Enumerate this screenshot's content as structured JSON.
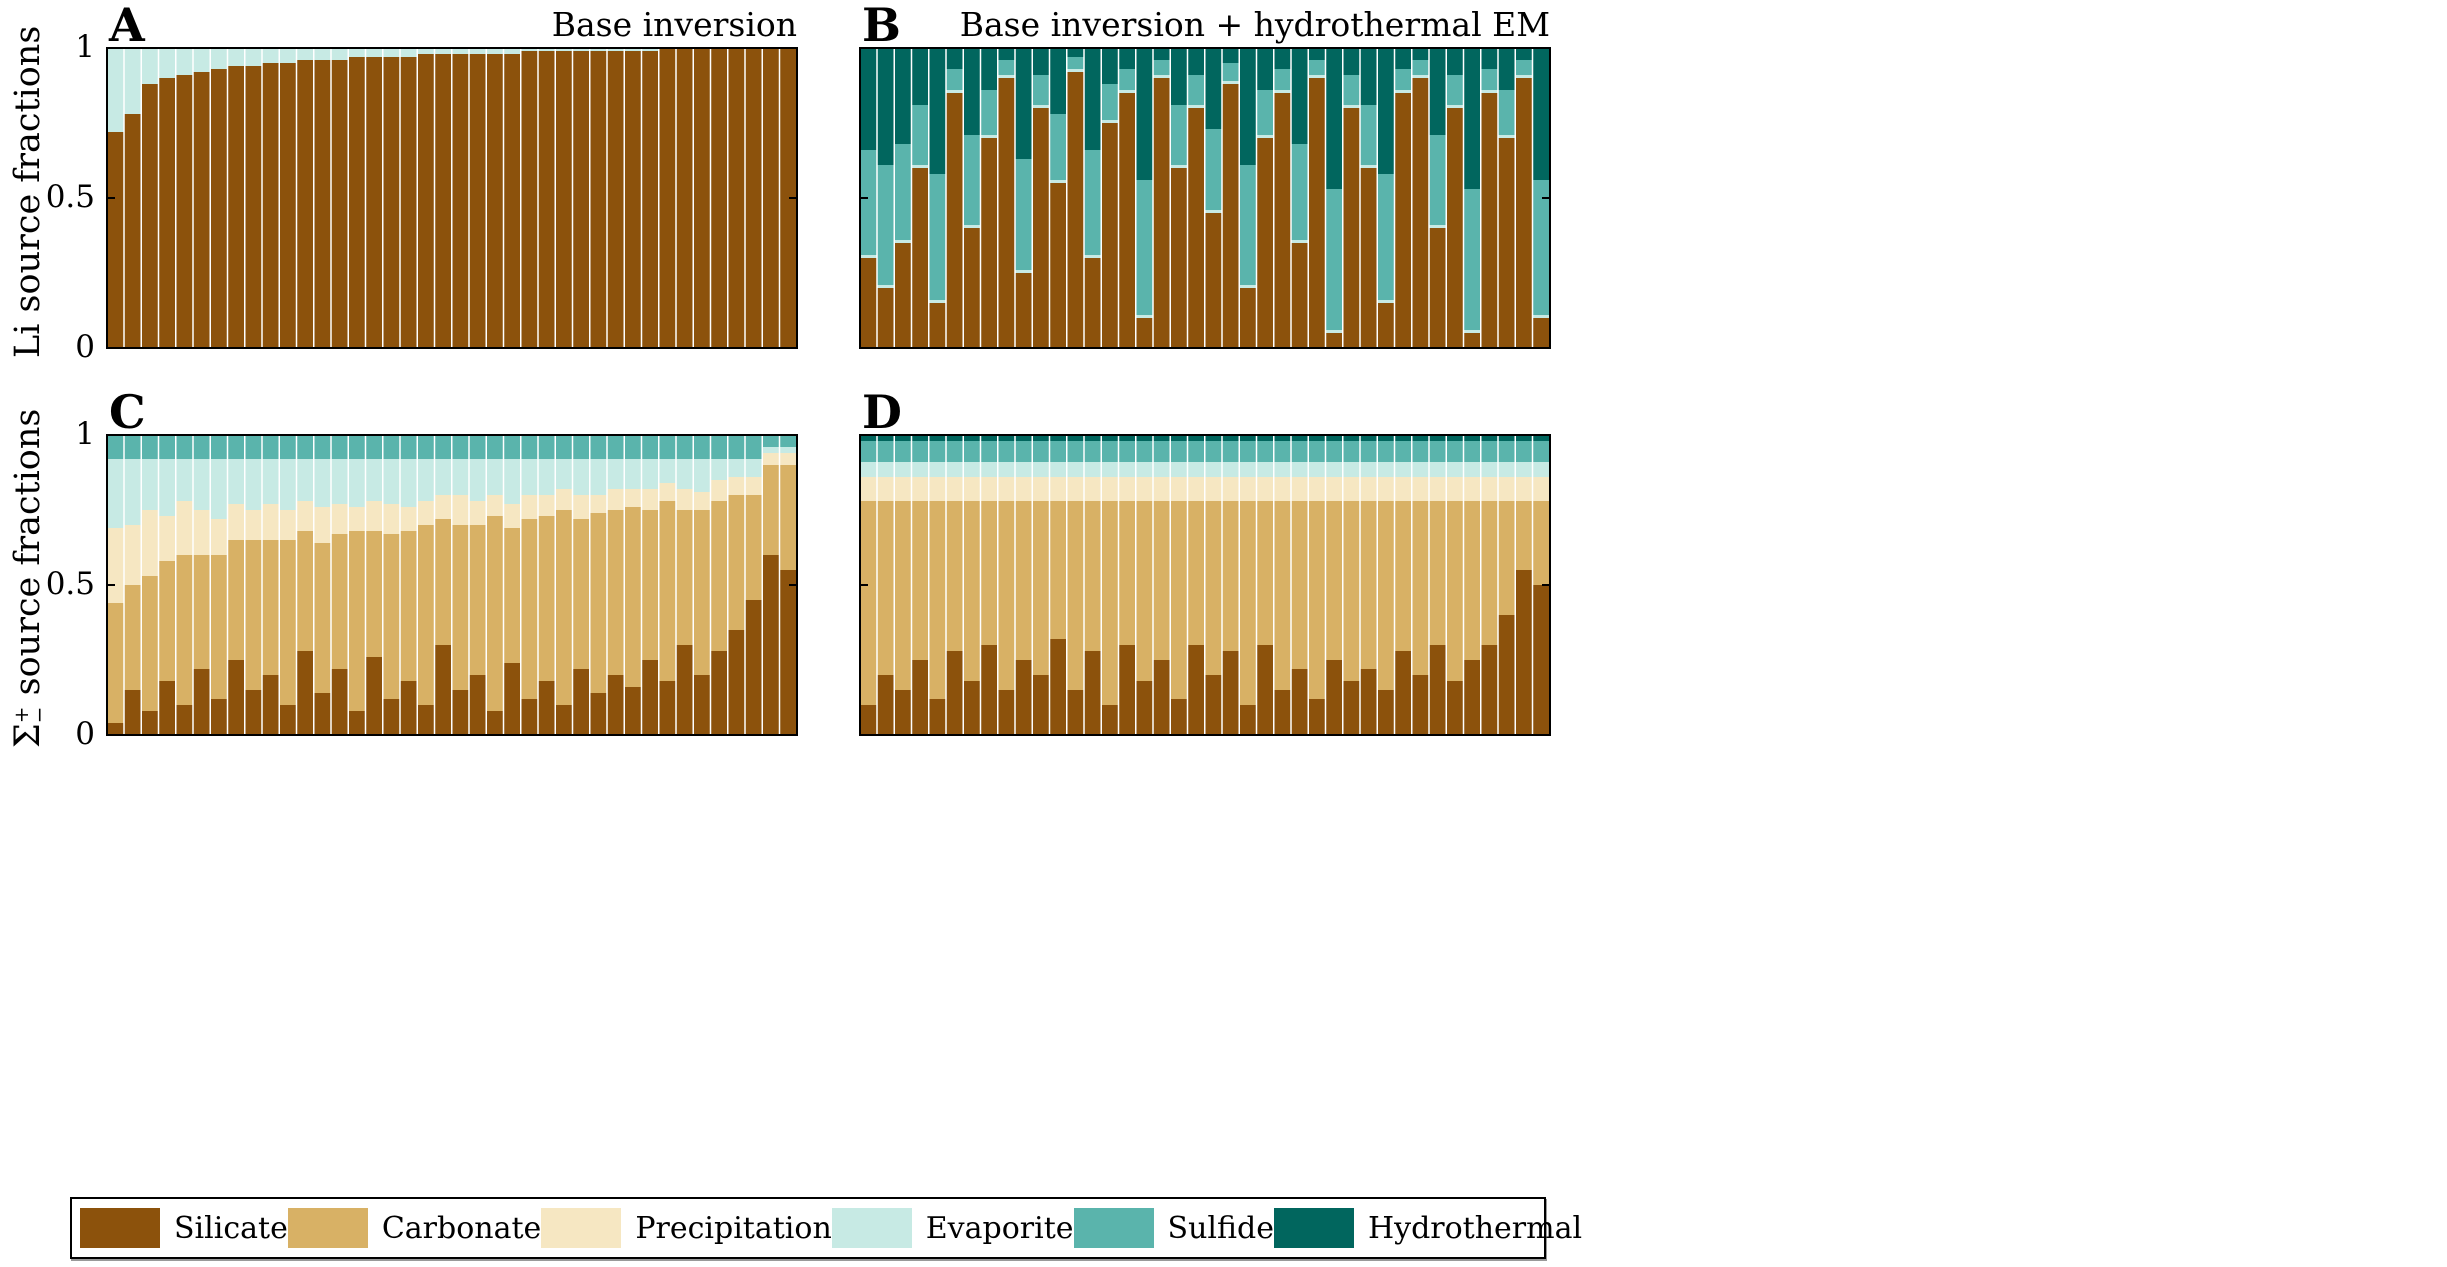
{
  "chart_data": {
    "type": "bar",
    "stacked": true,
    "legend": {
      "placement": "bottom",
      "entries": [
        "Silicate",
        "Carbonate",
        "Precipitation",
        "Evaporite",
        "Sulfide",
        "Hydrothermal"
      ]
    },
    "colors": {
      "Silicate": "#8c520c",
      "Carbonate": "#d8b165",
      "Precipitation": "#f6e7c2",
      "Evaporite": "#c7eae4",
      "Sulfide": "#5ab4ac",
      "Hydrothermal": "#01665e"
    },
    "yticks": [
      "0",
      "0.5",
      "1"
    ],
    "ylim": [
      0,
      1
    ],
    "rows": [
      {
        "ylabel": "Li source fractions"
      },
      {
        "ylabel_main": "Σ",
        "ylabel_sup": "+",
        "ylabel_sub": "−",
        "ylabel_rest": " source fractions"
      }
    ],
    "panels": [
      {
        "letter": "A",
        "title": "Base inversion",
        "series": [
          {
            "name": "Silicate",
            "values": [
              0.72,
              0.78,
              0.88,
              0.9,
              0.91,
              0.92,
              0.93,
              0.94,
              0.94,
              0.95,
              0.95,
              0.96,
              0.96,
              0.96,
              0.97,
              0.97,
              0.97,
              0.97,
              0.98,
              0.98,
              0.98,
              0.98,
              0.98,
              0.98,
              0.99,
              0.99,
              0.99,
              0.99,
              0.99,
              0.99,
              0.99,
              0.99,
              1.0,
              1.0,
              1.0,
              1.0,
              1.0,
              1.0,
              1.0,
              1.0
            ]
          },
          {
            "name": "Evaporite",
            "values": [
              0.28,
              0.22,
              0.12,
              0.1,
              0.09,
              0.08,
              0.07,
              0.06,
              0.06,
              0.05,
              0.05,
              0.04,
              0.04,
              0.04,
              0.03,
              0.03,
              0.03,
              0.03,
              0.02,
              0.02,
              0.02,
              0.02,
              0.02,
              0.02,
              0.01,
              0.01,
              0.01,
              0.01,
              0.01,
              0.01,
              0.01,
              0.01,
              0,
              0,
              0,
              0,
              0,
              0,
              0,
              0
            ]
          }
        ]
      },
      {
        "letter": "B",
        "title": "Base inversion + hydrothermal EM",
        "series": [
          {
            "name": "Silicate",
            "values": [
              0.3,
              0.2,
              0.35,
              0.6,
              0.15,
              0.85,
              0.4,
              0.7,
              0.9,
              0.25,
              0.8,
              0.55,
              0.92,
              0.3,
              0.75,
              0.85,
              0.1,
              0.9,
              0.6,
              0.8,
              0.45,
              0.88,
              0.2,
              0.7,
              0.85,
              0.35,
              0.9,
              0.05,
              0.8,
              0.6,
              0.15,
              0.85,
              0.9,
              0.4,
              0.8,
              0.05,
              0.85,
              0.7,
              0.9,
              0.1
            ]
          },
          {
            "name": "Evaporite",
            "values": [
              0.01,
              0.01,
              0.01,
              0.01,
              0.01,
              0.01,
              0.01,
              0.01,
              0.01,
              0.01,
              0.01,
              0.01,
              0.01,
              0.01,
              0.01,
              0.01,
              0.01,
              0.01,
              0.01,
              0.01,
              0.01,
              0.01,
              0.01,
              0.01,
              0.01,
              0.01,
              0.01,
              0.01,
              0.01,
              0.01,
              0.01,
              0.01,
              0.01,
              0.01,
              0.01,
              0.01,
              0.01,
              0.01,
              0.01,
              0.01
            ]
          },
          {
            "name": "Sulfide",
            "values": [
              0.35,
              0.4,
              0.32,
              0.2,
              0.42,
              0.07,
              0.3,
              0.15,
              0.05,
              0.37,
              0.1,
              0.22,
              0.04,
              0.35,
              0.12,
              0.07,
              0.45,
              0.05,
              0.2,
              0.1,
              0.27,
              0.06,
              0.4,
              0.15,
              0.07,
              0.32,
              0.05,
              0.47,
              0.1,
              0.2,
              0.42,
              0.07,
              0.05,
              0.3,
              0.1,
              0.47,
              0.07,
              0.15,
              0.05,
              0.45
            ]
          },
          {
            "name": "Hydrothermal",
            "values": [
              0.35,
              0.4,
              0.32,
              0.2,
              0.42,
              0.07,
              0.3,
              0.15,
              0.05,
              0.37,
              0.1,
              0.22,
              0.04,
              0.35,
              0.12,
              0.07,
              0.45,
              0.05,
              0.2,
              0.1,
              0.27,
              0.06,
              0.4,
              0.15,
              0.07,
              0.32,
              0.05,
              0.47,
              0.1,
              0.2,
              0.42,
              0.07,
              0.05,
              0.3,
              0.1,
              0.47,
              0.07,
              0.15,
              0.05,
              0.45
            ]
          }
        ]
      },
      {
        "letter": "C",
        "title": "",
        "series": [
          {
            "name": "Silicate",
            "values": [
              0.04,
              0.15,
              0.08,
              0.18,
              0.1,
              0.22,
              0.12,
              0.25,
              0.15,
              0.2,
              0.1,
              0.28,
              0.14,
              0.22,
              0.08,
              0.26,
              0.12,
              0.18,
              0.1,
              0.3,
              0.15,
              0.2,
              0.08,
              0.24,
              0.12,
              0.18,
              0.1,
              0.22,
              0.14,
              0.2,
              0.16,
              0.25,
              0.18,
              0.3,
              0.2,
              0.28,
              0.35,
              0.45,
              0.6,
              0.55
            ]
          },
          {
            "name": "Carbonate",
            "values": [
              0.4,
              0.35,
              0.45,
              0.4,
              0.5,
              0.38,
              0.48,
              0.4,
              0.5,
              0.45,
              0.55,
              0.4,
              0.5,
              0.45,
              0.6,
              0.42,
              0.55,
              0.5,
              0.6,
              0.42,
              0.55,
              0.5,
              0.65,
              0.45,
              0.6,
              0.55,
              0.65,
              0.5,
              0.6,
              0.55,
              0.6,
              0.5,
              0.6,
              0.45,
              0.55,
              0.5,
              0.45,
              0.35,
              0.3,
              0.35
            ]
          },
          {
            "name": "Precipitation",
            "values": [
              0.25,
              0.2,
              0.22,
              0.15,
              0.18,
              0.15,
              0.12,
              0.12,
              0.1,
              0.12,
              0.1,
              0.1,
              0.12,
              0.1,
              0.08,
              0.1,
              0.1,
              0.08,
              0.08,
              0.08,
              0.1,
              0.08,
              0.07,
              0.08,
              0.08,
              0.07,
              0.07,
              0.08,
              0.06,
              0.07,
              0.06,
              0.07,
              0.06,
              0.07,
              0.06,
              0.07,
              0.06,
              0.06,
              0.04,
              0.04
            ]
          },
          {
            "name": "Evaporite",
            "values": [
              0.23,
              0.22,
              0.17,
              0.19,
              0.14,
              0.17,
              0.2,
              0.15,
              0.17,
              0.15,
              0.17,
              0.14,
              0.16,
              0.15,
              0.16,
              0.14,
              0.15,
              0.16,
              0.14,
              0.12,
              0.12,
              0.14,
              0.12,
              0.15,
              0.12,
              0.12,
              0.1,
              0.12,
              0.12,
              0.1,
              0.1,
              0.1,
              0.08,
              0.1,
              0.11,
              0.07,
              0.06,
              0.06,
              0.02,
              0.02
            ]
          },
          {
            "name": "Sulfide",
            "values": [
              0.08,
              0.08,
              0.08,
              0.08,
              0.08,
              0.08,
              0.08,
              0.08,
              0.08,
              0.08,
              0.08,
              0.08,
              0.08,
              0.08,
              0.08,
              0.08,
              0.08,
              0.08,
              0.08,
              0.08,
              0.08,
              0.08,
              0.08,
              0.08,
              0.08,
              0.08,
              0.08,
              0.08,
              0.08,
              0.08,
              0.08,
              0.08,
              0.08,
              0.08,
              0.08,
              0.08,
              0.08,
              0.08,
              0.04,
              0.04
            ]
          }
        ]
      },
      {
        "letter": "D",
        "title": "",
        "series": [
          {
            "name": "Silicate",
            "values": [
              0.1,
              0.2,
              0.15,
              0.25,
              0.12,
              0.28,
              0.18,
              0.3,
              0.15,
              0.25,
              0.2,
              0.32,
              0.15,
              0.28,
              0.1,
              0.3,
              0.18,
              0.25,
              0.12,
              0.3,
              0.2,
              0.28,
              0.1,
              0.3,
              0.15,
              0.22,
              0.12,
              0.25,
              0.18,
              0.22,
              0.15,
              0.28,
              0.2,
              0.3,
              0.18,
              0.25,
              0.3,
              0.4,
              0.55,
              0.5
            ]
          },
          {
            "name": "Carbonate",
            "values": [
              0.68,
              0.58,
              0.63,
              0.53,
              0.66,
              0.5,
              0.6,
              0.48,
              0.63,
              0.53,
              0.58,
              0.46,
              0.63,
              0.5,
              0.68,
              0.48,
              0.6,
              0.53,
              0.66,
              0.48,
              0.58,
              0.5,
              0.68,
              0.48,
              0.63,
              0.56,
              0.66,
              0.53,
              0.6,
              0.56,
              0.63,
              0.5,
              0.58,
              0.48,
              0.6,
              0.53,
              0.48,
              0.38,
              0.23,
              0.28
            ]
          },
          {
            "name": "Precipitation",
            "values": [
              0.08,
              0.08,
              0.08,
              0.08,
              0.08,
              0.08,
              0.08,
              0.08,
              0.08,
              0.08,
              0.08,
              0.08,
              0.08,
              0.08,
              0.08,
              0.08,
              0.08,
              0.08,
              0.08,
              0.08,
              0.08,
              0.08,
              0.08,
              0.08,
              0.08,
              0.08,
              0.08,
              0.08,
              0.08,
              0.08,
              0.08,
              0.08,
              0.08,
              0.08,
              0.08,
              0.08,
              0.08,
              0.08,
              0.08,
              0.08
            ]
          },
          {
            "name": "Evaporite",
            "values": [
              0.05,
              0.05,
              0.05,
              0.05,
              0.05,
              0.05,
              0.05,
              0.05,
              0.05,
              0.05,
              0.05,
              0.05,
              0.05,
              0.05,
              0.05,
              0.05,
              0.05,
              0.05,
              0.05,
              0.05,
              0.05,
              0.05,
              0.05,
              0.05,
              0.05,
              0.05,
              0.05,
              0.05,
              0.05,
              0.05,
              0.05,
              0.05,
              0.05,
              0.05,
              0.05,
              0.05,
              0.05,
              0.05,
              0.05,
              0.05
            ]
          },
          {
            "name": "Sulfide",
            "values": [
              0.07,
              0.07,
              0.07,
              0.07,
              0.07,
              0.07,
              0.07,
              0.07,
              0.07,
              0.07,
              0.07,
              0.07,
              0.07,
              0.07,
              0.07,
              0.07,
              0.07,
              0.07,
              0.07,
              0.07,
              0.07,
              0.07,
              0.07,
              0.07,
              0.07,
              0.07,
              0.07,
              0.07,
              0.07,
              0.07,
              0.07,
              0.07,
              0.07,
              0.07,
              0.07,
              0.07,
              0.07,
              0.07,
              0.07,
              0.07
            ]
          },
          {
            "name": "Hydrothermal",
            "values": [
              0.02,
              0.02,
              0.02,
              0.02,
              0.02,
              0.02,
              0.02,
              0.02,
              0.02,
              0.02,
              0.02,
              0.02,
              0.02,
              0.02,
              0.02,
              0.02,
              0.02,
              0.02,
              0.02,
              0.02,
              0.02,
              0.02,
              0.02,
              0.02,
              0.02,
              0.02,
              0.02,
              0.02,
              0.02,
              0.02,
              0.02,
              0.02,
              0.02,
              0.02,
              0.02,
              0.02,
              0.02,
              0.02,
              0.02,
              0.02
            ]
          }
        ]
      }
    ]
  }
}
